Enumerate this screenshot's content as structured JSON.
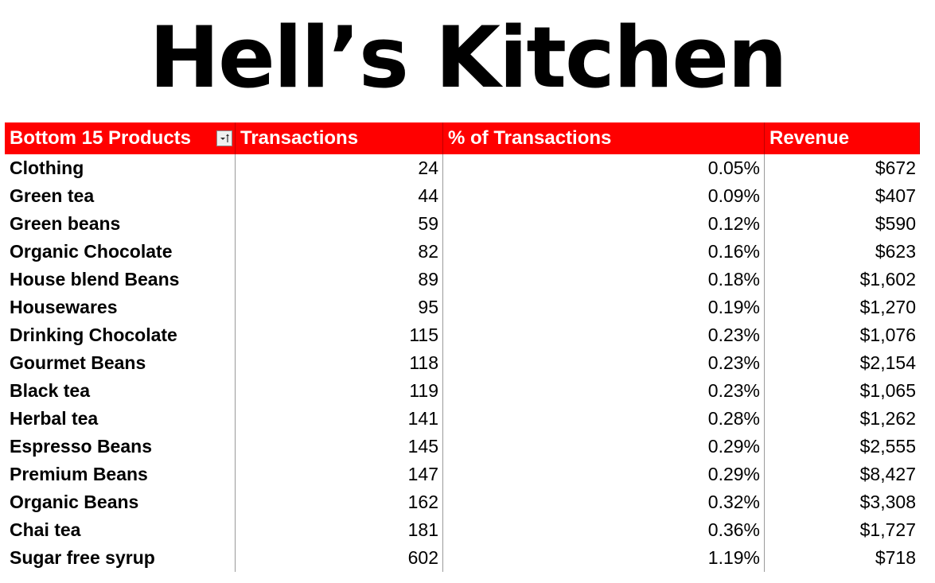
{
  "title": "Hell’s Kitchen",
  "table": {
    "headers": [
      "Bottom 15 Products",
      "Transactions",
      "% of Transactions",
      "Revenue"
    ],
    "filter_icon": "sort-filter-icon",
    "rows": [
      {
        "product": "Clothing",
        "transactions": "24",
        "pct": "0.05%",
        "revenue": "$672"
      },
      {
        "product": "Green tea",
        "transactions": "44",
        "pct": "0.09%",
        "revenue": "$407"
      },
      {
        "product": "Green beans",
        "transactions": "59",
        "pct": "0.12%",
        "revenue": "$590"
      },
      {
        "product": "Organic Chocolate",
        "transactions": "82",
        "pct": "0.16%",
        "revenue": "$623"
      },
      {
        "product": "House blend Beans",
        "transactions": "89",
        "pct": "0.18%",
        "revenue": "$1,602"
      },
      {
        "product": "Housewares",
        "transactions": "95",
        "pct": "0.19%",
        "revenue": "$1,270"
      },
      {
        "product": "Drinking Chocolate",
        "transactions": "115",
        "pct": "0.23%",
        "revenue": "$1,076"
      },
      {
        "product": "Gourmet Beans",
        "transactions": "118",
        "pct": "0.23%",
        "revenue": "$2,154"
      },
      {
        "product": "Black tea",
        "transactions": "119",
        "pct": "0.23%",
        "revenue": "$1,065"
      },
      {
        "product": "Herbal tea",
        "transactions": "141",
        "pct": "0.28%",
        "revenue": "$1,262"
      },
      {
        "product": "Espresso Beans",
        "transactions": "145",
        "pct": "0.29%",
        "revenue": "$2,555"
      },
      {
        "product": "Premium Beans",
        "transactions": "147",
        "pct": "0.29%",
        "revenue": "$8,427"
      },
      {
        "product": "Organic Beans",
        "transactions": "162",
        "pct": "0.32%",
        "revenue": "$3,308"
      },
      {
        "product": "Chai tea",
        "transactions": "181",
        "pct": "0.36%",
        "revenue": "$1,727"
      },
      {
        "product": "Sugar free syrup",
        "transactions": "602",
        "pct": "1.19%",
        "revenue": "$718"
      }
    ]
  },
  "colors": {
    "header_bg": "#ff0000",
    "header_text": "#ffffff"
  }
}
